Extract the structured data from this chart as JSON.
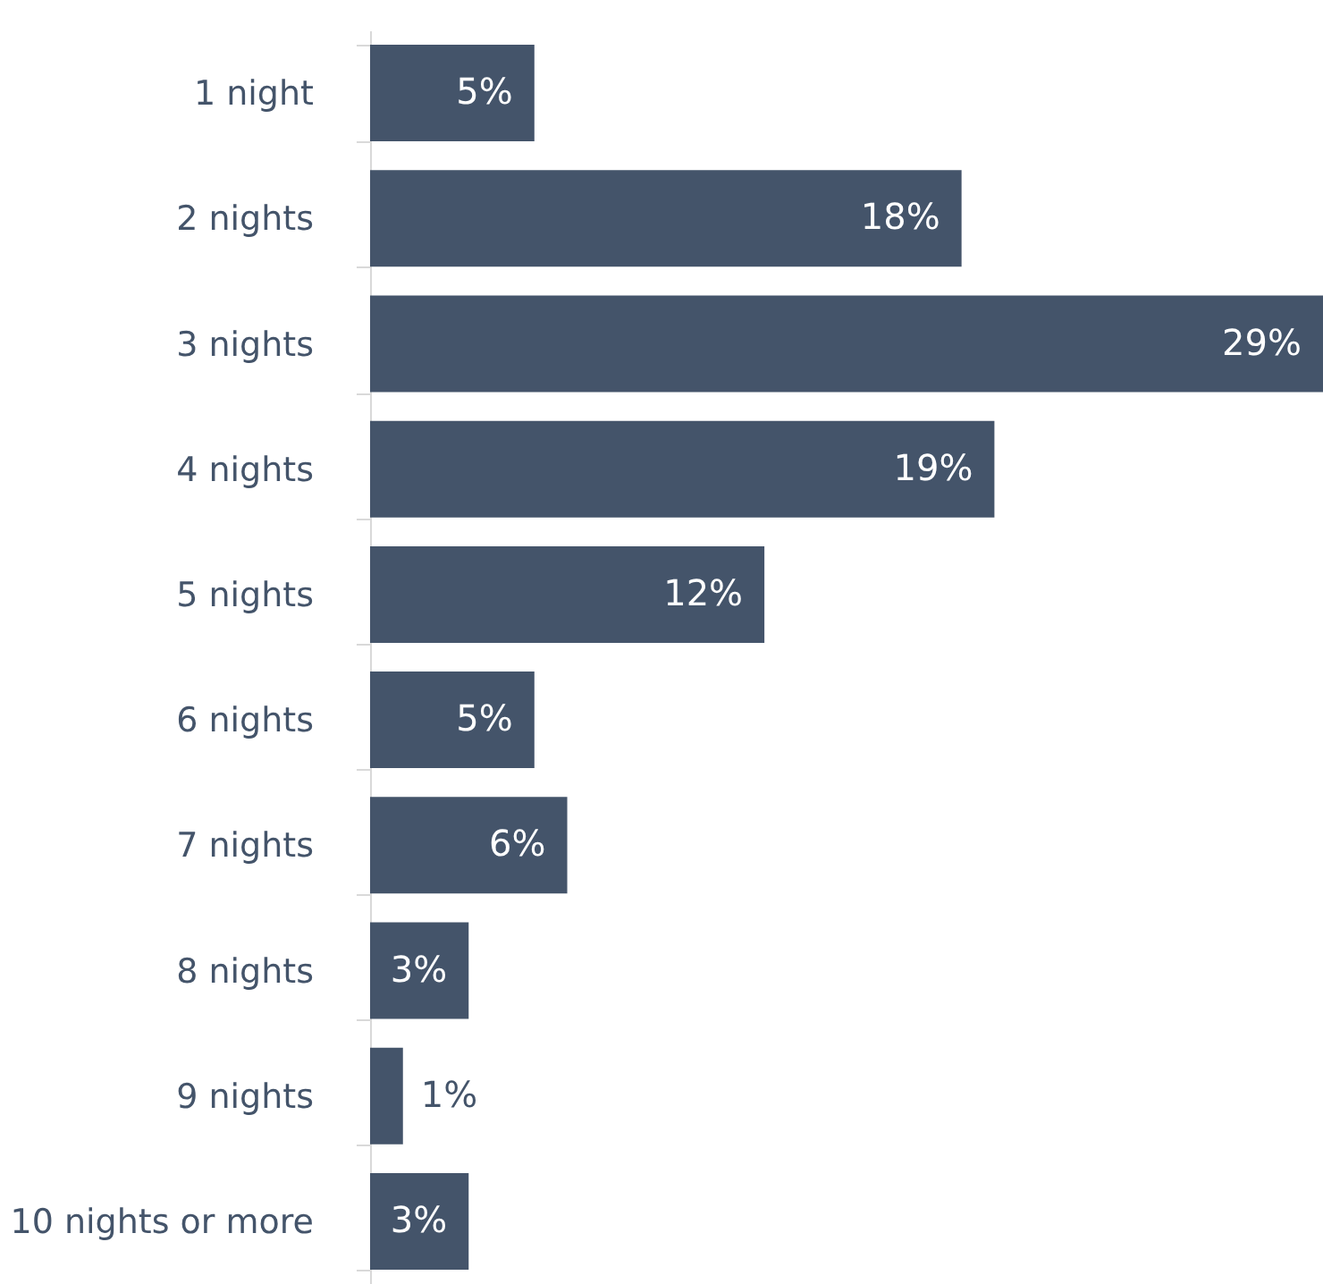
{
  "chart_data": {
    "type": "bar",
    "orientation": "horizontal",
    "categories": [
      "1 night",
      "2 nights",
      "3 nights",
      "4 nights",
      "5 nights",
      "6 nights",
      "7 nights",
      "8 nights",
      "9 nights",
      "10 nights or more"
    ],
    "values": [
      5,
      18,
      29,
      19,
      12,
      5,
      6,
      3,
      1,
      3
    ],
    "value_labels": [
      "5%",
      "18%",
      "29%",
      "19%",
      "12%",
      "5%",
      "6%",
      "3%",
      "1%",
      "3%"
    ],
    "color": "#44546a",
    "grid": false
  }
}
